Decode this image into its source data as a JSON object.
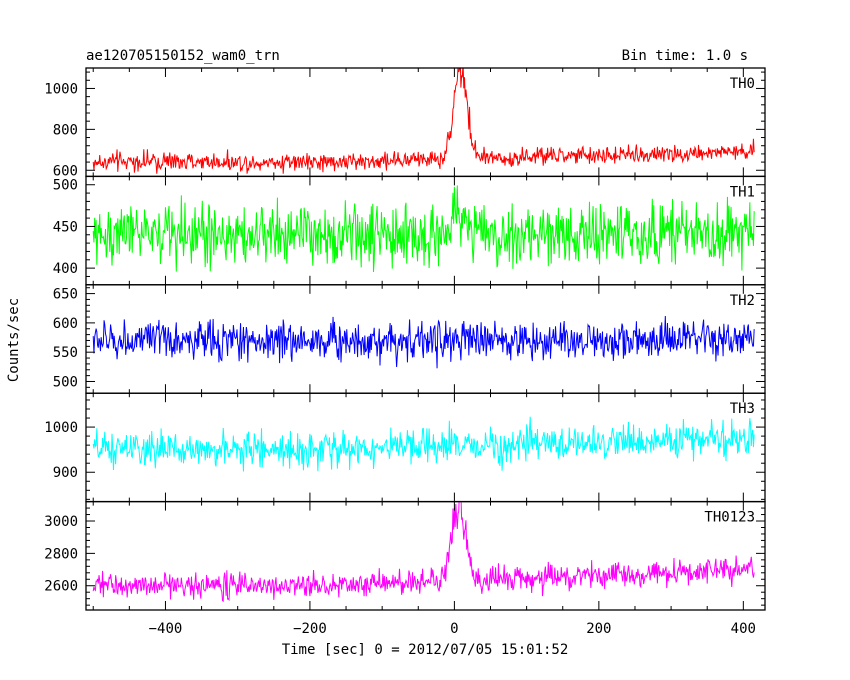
{
  "chart_data": {
    "type": "line",
    "title": "ae120705150152_wam0_trn",
    "subtitle": "Bin time: 1.0 s",
    "xlabel": "Time [sec] 0 = 2012/07/05 15:01:52",
    "ylabel": "Counts/sec",
    "xlim": [
      -510,
      430
    ],
    "x_ticks": [
      -400,
      -200,
      0,
      200,
      400
    ],
    "x_tick_labels": [
      "−400",
      "−200",
      "0",
      "200",
      "400"
    ],
    "x_range": [
      -500,
      415
    ],
    "grid": false,
    "panels": [
      {
        "name": "TH0",
        "color": "#ff0000",
        "ylim": [
          570,
          1100
        ],
        "y_ticks": [
          600,
          800,
          1000
        ],
        "y_tick_labels": [
          "600",
          "800",
          "1000"
        ],
        "baseline": 640,
        "end_level": 690,
        "noise": 40,
        "peak": {
          "x": 8,
          "height": 470,
          "width": 9
        }
      },
      {
        "name": "TH1",
        "color": "#00ff00",
        "ylim": [
          380,
          510
        ],
        "y_ticks": [
          400,
          450,
          500
        ],
        "y_tick_labels": [
          "400",
          "450",
          "500"
        ],
        "baseline": 440,
        "end_level": 440,
        "noise": 33,
        "peak": {
          "x": 8,
          "height": 25,
          "width": 12
        }
      },
      {
        "name": "TH2",
        "color": "#0000ff",
        "ylim": [
          480,
          665
        ],
        "y_ticks": [
          500,
          550,
          600,
          650
        ],
        "y_tick_labels": [
          "500",
          "550",
          "600",
          "650"
        ],
        "baseline": 570,
        "end_level": 570,
        "noise": 30,
        "peak": null
      },
      {
        "name": "TH3",
        "color": "#00ffff",
        "ylim": [
          835,
          1075
        ],
        "y_ticks": [
          900,
          1000
        ],
        "y_tick_labels": [
          "900",
          "1000"
        ],
        "baseline": 950,
        "end_level": 975,
        "noise": 34,
        "peak": null
      },
      {
        "name": "TH0123",
        "color": "#ff00ff",
        "ylim": [
          2450,
          3120
        ],
        "y_ticks": [
          2600,
          2800,
          3000
        ],
        "y_tick_labels": [
          "2600",
          "2800",
          "3000"
        ],
        "baseline": 2600,
        "end_level": 2700,
        "noise": 70,
        "peak": {
          "x": 6,
          "height": 450,
          "width": 10
        }
      }
    ]
  }
}
